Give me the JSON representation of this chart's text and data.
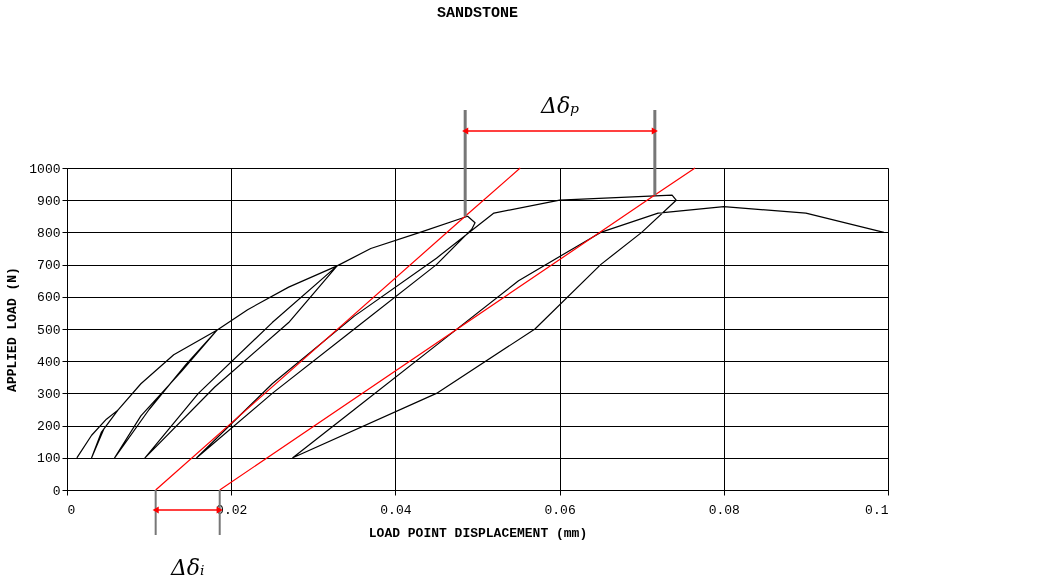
{
  "chart_data": {
    "type": "line",
    "title": "SANDSTONE",
    "xlabel": "LOAD POINT DISPLACEMENT (mm)",
    "ylabel": "APPLIED LOAD (N)",
    "xlim": [
      0,
      0.1
    ],
    "xticks": [
      0,
      0.02,
      0.04,
      0.06,
      0.08,
      0.1
    ],
    "ylim": [
      0,
      1000
    ],
    "yticks": [
      0,
      100,
      200,
      300,
      400,
      500,
      600,
      700,
      800,
      900,
      1000
    ],
    "grid": true,
    "legend": false,
    "marker": "none",
    "line_style": "solid",
    "annotations": [
      "Δδₚ",
      "Δδᵢ"
    ],
    "ref_lines": [
      {
        "axis": "x",
        "value": 0.0485,
        "color": "#777777"
      },
      {
        "axis": "x",
        "value": 0.0716,
        "color": "#777777"
      }
    ],
    "series": [
      {
        "color": "#000000",
        "x": [
          0.0012,
          0.003,
          0.0048,
          0.0062,
          0.0045,
          0.003,
          0.0042,
          0.0062,
          0.009,
          0.013,
          0.0183,
          0.014,
          0.009,
          0.0058,
          0.01,
          0.0145,
          0.0183,
          0.022,
          0.027,
          0.0329,
          0.027,
          0.018,
          0.0095,
          0.016,
          0.025,
          0.0329,
          0.037,
          0.043,
          0.0488,
          0.0497,
          0.0493,
          0.045,
          0.035,
          0.025,
          0.0158,
          0.025,
          0.035,
          0.045,
          0.052,
          0.06,
          0.0737,
          0.0742,
          0.07,
          0.065,
          0.057,
          0.045,
          0.0275,
          0.035,
          0.045,
          0.055,
          0.065,
          0.072,
          0.08,
          0.09,
          0.0995
        ],
        "values": [
          100,
          170,
          220,
          248,
          190,
          100,
          180,
          248,
          330,
          420,
          497,
          370,
          230,
          100,
          250,
          390,
          497,
          560,
          630,
          696,
          520,
          320,
          100,
          300,
          520,
          696,
          750,
          800,
          850,
          830,
          810,
          700,
          500,
          300,
          100,
          330,
          540,
          720,
          860,
          900,
          916,
          900,
          800,
          700,
          500,
          300,
          100,
          250,
          450,
          650,
          800,
          860,
          880,
          860,
          800
        ]
      },
      {
        "color": "#ff0000",
        "x": [
          0.0108,
          0.0485,
          0.0552
        ],
        "values": [
          0,
          850,
          1000
        ]
      },
      {
        "color": "#ff0000",
        "x": [
          0.0186,
          0.0716,
          0.0765
        ],
        "values": [
          0,
          916,
          1000
        ]
      }
    ]
  }
}
